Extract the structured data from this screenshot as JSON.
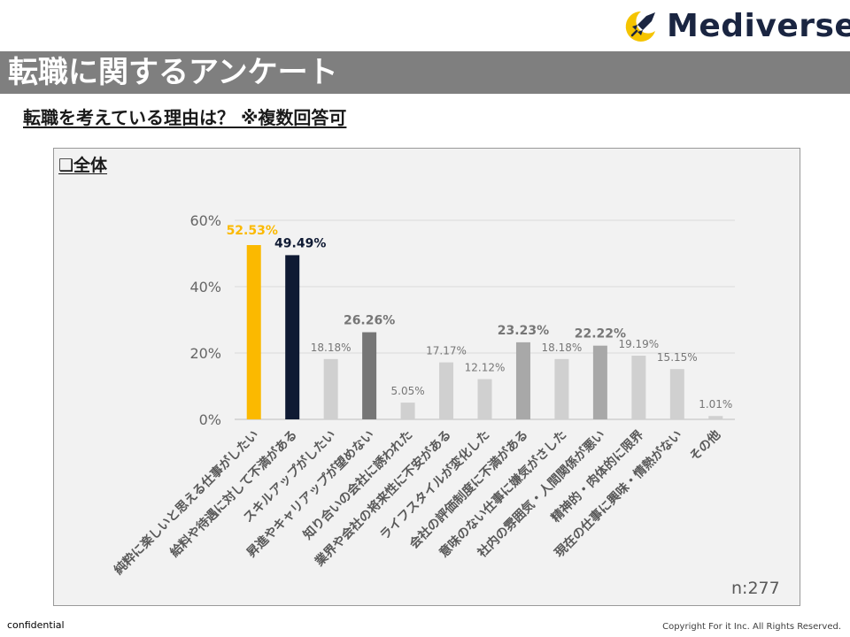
{
  "brand": {
    "name": "Mediverse"
  },
  "header": {
    "title": "転職に関するアンケート",
    "question": "転職を考えている理由は？ ※複数回答可"
  },
  "panel": {
    "label": "❑全体",
    "sample_size": "n:277"
  },
  "colors": {
    "title_bar": "#7f7f7f",
    "highlight_yellow": "#fbb900",
    "highlight_navy": "#0f1a33",
    "dark_gray": "#767676",
    "mid_gray": "#a8a8a8",
    "light_gray": "#d0d0d0"
  },
  "chart_data": {
    "type": "bar",
    "title": "転職を考えている理由は？ ※複数回答可",
    "xlabel": "",
    "ylabel": "",
    "ylim": [
      0,
      60
    ],
    "yticks": [
      "0%",
      "20%",
      "40%",
      "60%"
    ],
    "ytick_values": [
      0,
      20,
      40,
      60
    ],
    "categories": [
      "純粋に楽しいと思える仕事がしたい",
      "給料や待遇に対して不満がある",
      "スキルアップがしたい",
      "昇進やキャリアップが望めない",
      "知り合いの会社に誘われた",
      "業界や会社の将来性に不安がある",
      "ライフスタイルが変化した",
      "会社の評価制度に不満がある",
      "意味のない仕事に嫌気がさした",
      "社内の雰囲気・人間関係が悪い",
      "精神的・肉体的に限界",
      "現在の仕事に興味・情熱がない",
      "その他"
    ],
    "values": [
      52.53,
      49.49,
      18.18,
      26.26,
      5.05,
      17.17,
      12.12,
      23.23,
      18.18,
      22.22,
      19.19,
      15.15,
      1.01
    ],
    "data_labels": [
      "52.53%",
      "49.49%",
      "18.18%",
      "26.26%",
      "5.05%",
      "17.17%",
      "12.12%",
      "23.23%",
      "18.18%",
      "22.22%",
      "19.19%",
      "15.15%",
      "1.01%"
    ],
    "bar_colors": [
      "#fbb900",
      "#0f1a33",
      "#d0d0d0",
      "#767676",
      "#d0d0d0",
      "#d0d0d0",
      "#d0d0d0",
      "#a8a8a8",
      "#d0d0d0",
      "#a8a8a8",
      "#d0d0d0",
      "#d0d0d0",
      "#d0d0d0"
    ],
    "label_colors": [
      "#fbb900",
      "#0f1a33",
      "#767676",
      "#767676",
      "#767676",
      "#767676",
      "#767676",
      "#767676",
      "#767676",
      "#767676",
      "#767676",
      "#767676",
      "#767676"
    ],
    "label_emphasis": [
      true,
      true,
      false,
      true,
      false,
      false,
      false,
      true,
      false,
      true,
      false,
      false,
      false
    ],
    "grid": true
  },
  "footer": {
    "left": "confidential",
    "right": "Copyright For it Inc. All Rights Reserved."
  }
}
